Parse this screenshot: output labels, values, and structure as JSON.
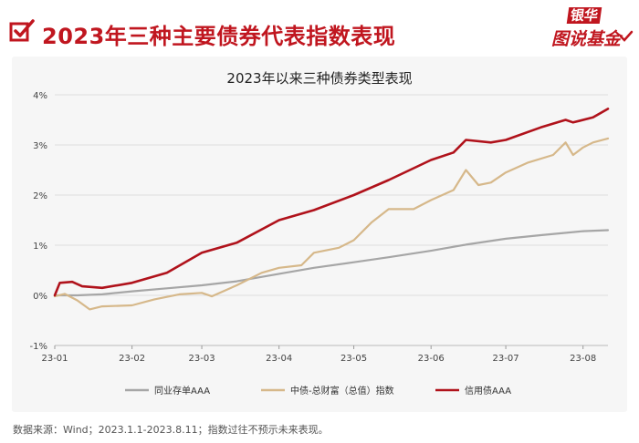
{
  "header": {
    "title": "2023年三种主要债券代表指数表现"
  },
  "logo": {
    "line1": "银华",
    "line2": "图说基金"
  },
  "footer": {
    "source": "数据来源：Wind；2023.1.1-2023.8.11；指数过往不预示未来表现。"
  },
  "colors": {
    "brand": "#c0161f",
    "series_gray": "#a6a6a6",
    "series_tan": "#d6b88a",
    "series_red": "#b0121b"
  },
  "chart_data": {
    "type": "line",
    "title": "2023年以来三种债券类型表现",
    "xlabel": "",
    "ylabel": "",
    "ylim": [
      -1,
      4
    ],
    "y_unit": "%",
    "yticks": [
      "-1%",
      "0%",
      "1%",
      "2%",
      "3%",
      "4%"
    ],
    "yticks_values": [
      -1,
      0,
      1,
      2,
      3,
      4
    ],
    "xlim": [
      "2023-01-01",
      "2023-08-11"
    ],
    "xticks": [
      "23-01",
      "23-02",
      "23-03",
      "23-04",
      "23-05",
      "23-06",
      "23-07",
      "23-08"
    ],
    "xticks_dates": [
      "2023-01-01",
      "2023-02-01",
      "2023-03-01",
      "2023-04-01",
      "2023-05-01",
      "2023-06-01",
      "2023-07-01",
      "2023-08-01"
    ],
    "grid": "horizontal",
    "legend": "bottom",
    "series": [
      {
        "name": "同业存单AAA",
        "color": "#a6a6a6",
        "points": [
          [
            "2023-01-01",
            0.0
          ],
          [
            "2023-01-10",
            0.0
          ],
          [
            "2023-01-20",
            0.02
          ],
          [
            "2023-02-01",
            0.08
          ],
          [
            "2023-02-15",
            0.14
          ],
          [
            "2023-03-01",
            0.2
          ],
          [
            "2023-03-15",
            0.28
          ],
          [
            "2023-04-01",
            0.43
          ],
          [
            "2023-04-15",
            0.55
          ],
          [
            "2023-05-01",
            0.66
          ],
          [
            "2023-05-15",
            0.76
          ],
          [
            "2023-06-01",
            0.89
          ],
          [
            "2023-06-15",
            1.01
          ],
          [
            "2023-07-01",
            1.13
          ],
          [
            "2023-07-15",
            1.2
          ],
          [
            "2023-08-01",
            1.28
          ],
          [
            "2023-08-11",
            1.3
          ]
        ]
      },
      {
        "name": "中债-总财富（总值）指数",
        "color": "#d6b88a",
        "points": [
          [
            "2023-01-01",
            -0.02
          ],
          [
            "2023-01-05",
            0.03
          ],
          [
            "2023-01-10",
            -0.1
          ],
          [
            "2023-01-15",
            -0.28
          ],
          [
            "2023-01-20",
            -0.22
          ],
          [
            "2023-02-01",
            -0.2
          ],
          [
            "2023-02-10",
            -0.08
          ],
          [
            "2023-02-20",
            0.02
          ],
          [
            "2023-03-01",
            0.05
          ],
          [
            "2023-03-05",
            -0.02
          ],
          [
            "2023-03-15",
            0.2
          ],
          [
            "2023-03-25",
            0.45
          ],
          [
            "2023-04-01",
            0.55
          ],
          [
            "2023-04-10",
            0.6
          ],
          [
            "2023-04-15",
            0.85
          ],
          [
            "2023-04-25",
            0.95
          ],
          [
            "2023-05-01",
            1.1
          ],
          [
            "2023-05-08",
            1.45
          ],
          [
            "2023-05-15",
            1.72
          ],
          [
            "2023-05-25",
            1.72
          ],
          [
            "2023-06-01",
            1.9
          ],
          [
            "2023-06-10",
            2.1
          ],
          [
            "2023-06-15",
            2.5
          ],
          [
            "2023-06-20",
            2.2
          ],
          [
            "2023-06-25",
            2.25
          ],
          [
            "2023-07-01",
            2.45
          ],
          [
            "2023-07-10",
            2.65
          ],
          [
            "2023-07-20",
            2.8
          ],
          [
            "2023-07-25",
            3.05
          ],
          [
            "2023-07-28",
            2.8
          ],
          [
            "2023-08-01",
            2.95
          ],
          [
            "2023-08-05",
            3.05
          ],
          [
            "2023-08-11",
            3.13
          ]
        ]
      },
      {
        "name": "信用债AAA",
        "color": "#b0121b",
        "points": [
          [
            "2023-01-01",
            0.0
          ],
          [
            "2023-01-03",
            0.25
          ],
          [
            "2023-01-08",
            0.27
          ],
          [
            "2023-01-12",
            0.18
          ],
          [
            "2023-01-20",
            0.15
          ],
          [
            "2023-02-01",
            0.25
          ],
          [
            "2023-02-15",
            0.45
          ],
          [
            "2023-03-01",
            0.85
          ],
          [
            "2023-03-15",
            1.05
          ],
          [
            "2023-04-01",
            1.5
          ],
          [
            "2023-04-15",
            1.7
          ],
          [
            "2023-05-01",
            2.0
          ],
          [
            "2023-05-15",
            2.3
          ],
          [
            "2023-06-01",
            2.7
          ],
          [
            "2023-06-10",
            2.85
          ],
          [
            "2023-06-15",
            3.1
          ],
          [
            "2023-06-25",
            3.05
          ],
          [
            "2023-07-01",
            3.1
          ],
          [
            "2023-07-15",
            3.35
          ],
          [
            "2023-07-25",
            3.5
          ],
          [
            "2023-07-28",
            3.45
          ],
          [
            "2023-08-05",
            3.55
          ],
          [
            "2023-08-11",
            3.72
          ]
        ]
      }
    ]
  }
}
